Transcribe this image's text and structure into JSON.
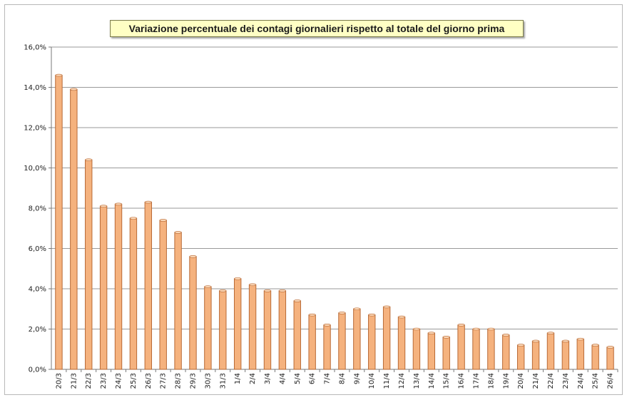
{
  "chart_data": {
    "type": "bar",
    "title": "Variazione percentuale dei contagi giornalieri rispetto al totale del giorno prima",
    "xlabel": "",
    "ylabel": "",
    "ylim": [
      0,
      16
    ],
    "yticks": [
      "0,0%",
      "2,0%",
      "4,0%",
      "6,0%",
      "8,0%",
      "10,0%",
      "12,0%",
      "14,0%",
      "16,0%"
    ],
    "grid": true,
    "legend": "none",
    "bar_color": "#f5b27e",
    "bar_edge_color": "#b86a36",
    "categories": [
      "20/3",
      "21/3",
      "22/3",
      "23/3",
      "24/3",
      "25/3",
      "26/3",
      "27/3",
      "28/3",
      "29/3",
      "30/3",
      "31/3",
      "1/4",
      "2/4",
      "3/4",
      "4/4",
      "5/4",
      "6/4",
      "7/4",
      "8/4",
      "9/4",
      "10/4",
      "11/4",
      "12/4",
      "13/4",
      "14/4",
      "15/4",
      "16/4",
      "17/4",
      "18/4",
      "19/4",
      "20/4",
      "21/4",
      "22/4",
      "23/4",
      "24/4",
      "25/4",
      "26/4"
    ],
    "values": [
      14.6,
      13.9,
      10.4,
      8.1,
      8.2,
      7.5,
      8.3,
      7.4,
      6.8,
      5.6,
      4.1,
      3.9,
      4.5,
      4.2,
      3.9,
      3.9,
      3.4,
      2.7,
      2.2,
      2.8,
      3.0,
      2.7,
      3.1,
      2.6,
      2.0,
      1.8,
      1.6,
      2.2,
      2.0,
      2.0,
      1.7,
      1.2,
      1.4,
      1.8,
      1.4,
      1.5,
      1.2,
      1.1
    ]
  }
}
